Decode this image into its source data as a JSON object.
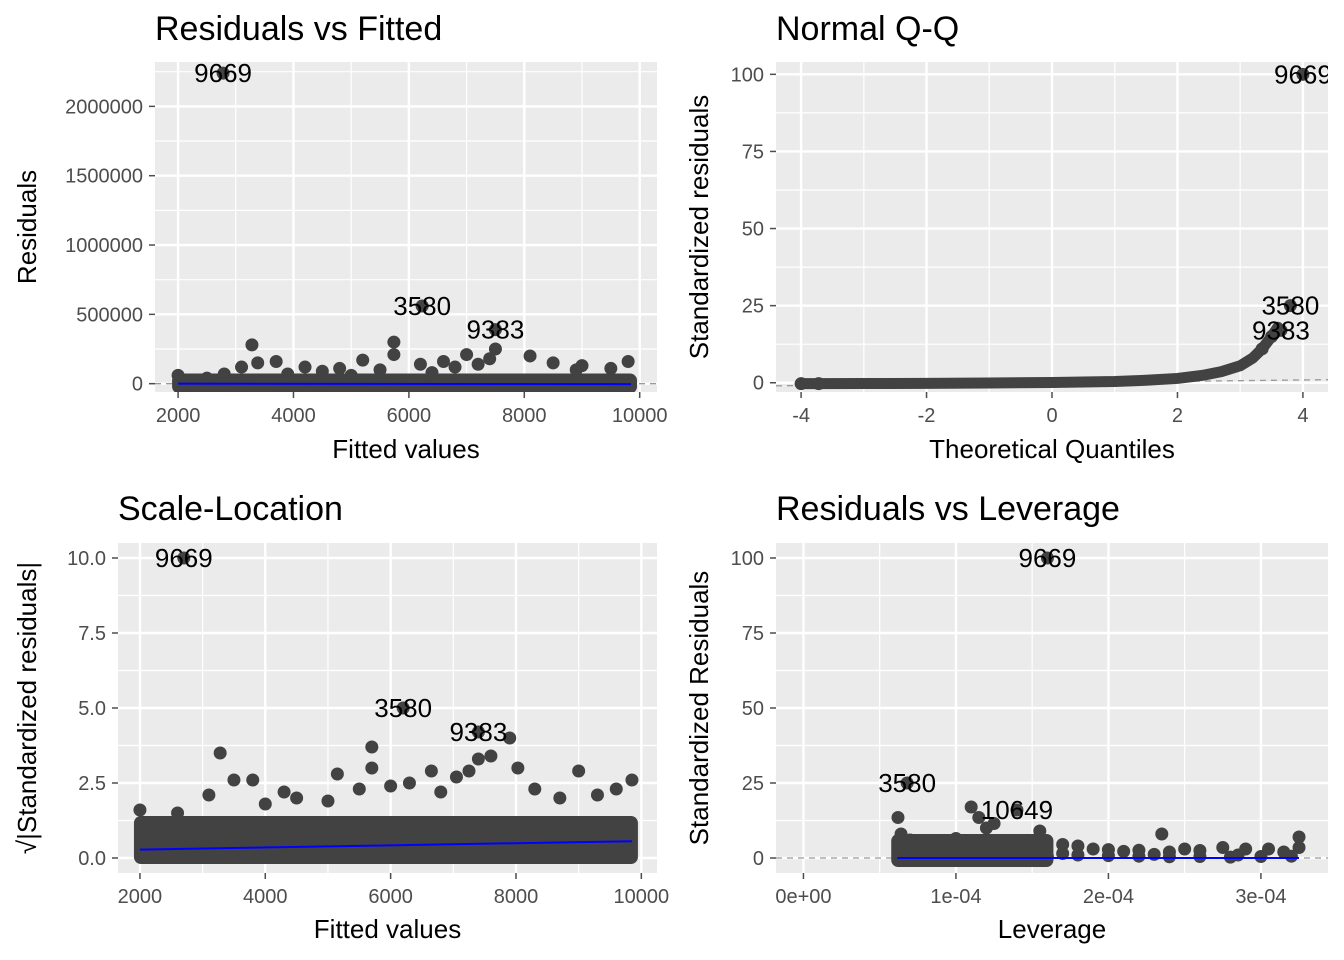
{
  "colors": {
    "panel_bg": "#EBEBEB",
    "grid": "#FFFFFF",
    "point": "#424242",
    "smooth": "#0000FF",
    "refline": "#999999",
    "tick": "#4D4D4D",
    "text": "#000000"
  },
  "chart_data": [
    {
      "id": "residuals-vs-fitted",
      "type": "scatter",
      "title": "Residuals vs Fitted",
      "xlabel": "Fitted values",
      "ylabel": "Residuals",
      "xlim": [
        1600,
        10300
      ],
      "ylim": [
        -60000,
        2320000
      ],
      "x_ticks": [
        2000,
        4000,
        6000,
        8000,
        10000
      ],
      "x_tick_labels": [
        "2000",
        "4000",
        "6000",
        "8000",
        "10000"
      ],
      "y_ticks": [
        0,
        500000,
        1000000,
        1500000,
        2000000
      ],
      "y_tick_labels": [
        "0",
        "500000",
        "1000000",
        "1500000",
        "2000000"
      ],
      "grid": true,
      "reference_line": {
        "y": 0,
        "style": "dashed"
      },
      "smooth": [
        [
          2000,
          0
        ],
        [
          9850,
          -3000
        ]
      ],
      "band": {
        "x_range": [
          2000,
          9850
        ],
        "y_low": -15000,
        "y_high": 30000
      },
      "points": [
        [
          3280,
          280000
        ],
        [
          5740,
          300000
        ],
        [
          5740,
          210000
        ],
        [
          3380,
          150000
        ],
        [
          3700,
          160000
        ],
        [
          4200,
          120000
        ],
        [
          4800,
          110000
        ],
        [
          5200,
          170000
        ],
        [
          6200,
          140000
        ],
        [
          6600,
          160000
        ],
        [
          7000,
          210000
        ],
        [
          7500,
          250000
        ],
        [
          7400,
          180000
        ],
        [
          8100,
          200000
        ],
        [
          8500,
          150000
        ],
        [
          9000,
          130000
        ],
        [
          9800,
          160000
        ],
        [
          2000,
          60000
        ],
        [
          2800,
          70000
        ],
        [
          3100,
          120000
        ],
        [
          4500,
          90000
        ],
        [
          5500,
          100000
        ],
        [
          6800,
          120000
        ],
        [
          7200,
          140000
        ],
        [
          8900,
          100000
        ],
        [
          9500,
          110000
        ],
        [
          2500,
          40000
        ],
        [
          3900,
          70000
        ],
        [
          5000,
          60000
        ],
        [
          6400,
          80000
        ]
      ],
      "labeled_points": [
        {
          "label": "9669",
          "x": 2780,
          "y": 2240000
        },
        {
          "label": "3580",
          "x": 6230,
          "y": 560000
        },
        {
          "label": "9383",
          "x": 7500,
          "y": 390000
        }
      ]
    },
    {
      "id": "normal-qq",
      "type": "scatter",
      "title": "Normal Q-Q",
      "xlabel": "Theoretical Quantiles",
      "ylabel": "Standardized residuals",
      "xlim": [
        -4.4,
        4.4
      ],
      "ylim": [
        -3,
        104
      ],
      "x_ticks": [
        -4,
        -2,
        0,
        2,
        4
      ],
      "x_tick_labels": [
        "-4",
        "-2",
        "0",
        "2",
        "4"
      ],
      "y_ticks": [
        0,
        25,
        50,
        75,
        100
      ],
      "y_tick_labels": [
        "0",
        "25",
        "50",
        "75",
        "100"
      ],
      "grid": true,
      "reference_line": {
        "from": [
          -4.4,
          -1.0
        ],
        "to": [
          4.4,
          1.0
        ],
        "style": "dashed"
      },
      "curve": [
        [
          -4.0,
          -0.3
        ],
        [
          -3.7,
          -0.3
        ],
        [
          -3.0,
          -0.25
        ],
        [
          -2.0,
          -0.2
        ],
        [
          -1.0,
          -0.1
        ],
        [
          0,
          0.1
        ],
        [
          1.0,
          0.4
        ],
        [
          1.5,
          0.8
        ],
        [
          2.0,
          1.4
        ],
        [
          2.4,
          2.4
        ],
        [
          2.7,
          3.6
        ],
        [
          3.0,
          5.5
        ],
        [
          3.2,
          8.0
        ],
        [
          3.35,
          11.0
        ],
        [
          3.5,
          15.0
        ],
        [
          3.6,
          18.0
        ]
      ],
      "points": [
        [
          -4.0,
          -0.3
        ],
        [
          -3.72,
          -0.3
        ],
        [
          3.35,
          11.0
        ],
        [
          3.5,
          15.0
        ]
      ],
      "labeled_points": [
        {
          "label": "9669",
          "x": 4.0,
          "y": 100
        },
        {
          "label": "3580",
          "x": 3.8,
          "y": 25
        },
        {
          "label": "9383",
          "x": 3.65,
          "y": 17
        }
      ]
    },
    {
      "id": "scale-location",
      "type": "scatter",
      "title": "Scale-Location",
      "xlabel": "Fitted values",
      "ylabel": "√|Standardized residuals|",
      "xlim": [
        1650,
        10250
      ],
      "ylim": [
        -0.5,
        10.5
      ],
      "x_ticks": [
        2000,
        4000,
        6000,
        8000,
        10000
      ],
      "x_tick_labels": [
        "2000",
        "4000",
        "6000",
        "8000",
        "10000"
      ],
      "y_ticks": [
        0.0,
        2.5,
        5.0,
        7.5,
        10.0
      ],
      "y_tick_labels": [
        "0.0",
        "2.5",
        "5.0",
        "7.5",
        "10.0"
      ],
      "grid": true,
      "smooth": [
        [
          2000,
          0.28
        ],
        [
          9850,
          0.56
        ]
      ],
      "band": {
        "x_range": [
          2000,
          9850
        ],
        "y_low": 0.0,
        "y_high": 1.2
      },
      "points": [
        [
          3280,
          3.5
        ],
        [
          5700,
          3.7
        ],
        [
          5700,
          3.0
        ],
        [
          7400,
          3.3
        ],
        [
          7600,
          3.4
        ],
        [
          7900,
          4.0
        ],
        [
          5150,
          2.8
        ],
        [
          6650,
          2.9
        ],
        [
          7050,
          2.7
        ],
        [
          7250,
          2.9
        ],
        [
          8030,
          3.0
        ],
        [
          9000,
          2.9
        ],
        [
          9850,
          2.6
        ],
        [
          2000,
          1.6
        ],
        [
          3500,
          2.6
        ],
        [
          3800,
          2.6
        ],
        [
          3100,
          2.1
        ],
        [
          4000,
          1.8
        ],
        [
          4500,
          2.0
        ],
        [
          5000,
          1.9
        ],
        [
          5500,
          2.3
        ],
        [
          6000,
          2.4
        ],
        [
          6300,
          2.5
        ],
        [
          6800,
          2.2
        ],
        [
          8300,
          2.3
        ],
        [
          8700,
          2.0
        ],
        [
          9300,
          2.1
        ],
        [
          9600,
          2.3
        ],
        [
          4300,
          2.2
        ],
        [
          2600,
          1.5
        ]
      ],
      "labeled_points": [
        {
          "label": "9669",
          "x": 2700,
          "y": 10.0
        },
        {
          "label": "3580",
          "x": 6200,
          "y": 5.0
        },
        {
          "label": "9383",
          "x": 7400,
          "y": 4.2
        }
      ]
    },
    {
      "id": "residuals-vs-leverage",
      "type": "scatter",
      "title": "Residuals vs Leverage",
      "xlabel": "Leverage",
      "ylabel": "Standardized Residuals",
      "xlim": [
        -1.8e-05,
        0.000344
      ],
      "ylim": [
        -5,
        105
      ],
      "x_ticks": [
        0,
        0.0001,
        0.0002,
        0.0003
      ],
      "x_tick_labels": [
        "0e+00",
        "1e-04",
        "2e-04",
        "3e-04"
      ],
      "y_ticks": [
        0,
        25,
        50,
        75,
        100
      ],
      "y_tick_labels": [
        "0",
        "25",
        "50",
        "75",
        "100"
      ],
      "grid": true,
      "reference_line": {
        "y": 0,
        "style": "dashed"
      },
      "smooth": [
        [
          6.15e-05,
          0
        ],
        [
          0.000325,
          0
        ]
      ],
      "band": {
        "x_range": [
          6.15e-05,
          0.00016
        ],
        "y_low": -1,
        "y_high": 6
      },
      "points": [
        [
          6.2e-05,
          13.5
        ],
        [
          6.4e-05,
          8.0
        ],
        [
          0.00011,
          17.0
        ],
        [
          0.000115,
          13.5
        ],
        [
          0.00012,
          10.0
        ],
        [
          0.000125,
          11.5
        ],
        [
          0.000155,
          9.0
        ],
        [
          0.000235,
          8.0
        ],
        [
          0.000325,
          7.0
        ],
        [
          7e-05,
          6.0
        ],
        [
          8e-05,
          5.0
        ],
        [
          9e-05,
          5.5
        ],
        [
          0.0001,
          6.5
        ],
        [
          0.00014,
          5.0
        ],
        [
          0.00017,
          4.5
        ],
        [
          0.00018,
          4.0
        ],
        [
          0.00019,
          3.0
        ],
        [
          0.0002,
          2.8
        ],
        [
          0.00021,
          2.2
        ],
        [
          0.00022,
          2.6
        ],
        [
          0.00024,
          2.0
        ],
        [
          0.00025,
          3.0
        ],
        [
          0.00026,
          2.5
        ],
        [
          0.000275,
          3.5
        ],
        [
          0.00029,
          3.0
        ],
        [
          0.000305,
          3.0
        ],
        [
          0.000315,
          2.0
        ],
        [
          0.000325,
          3.5
        ],
        [
          0.00016,
          0.5
        ],
        [
          0.00018,
          1.0
        ],
        [
          0.0002,
          0.8
        ],
        [
          0.00022,
          0.6
        ],
        [
          0.00024,
          0.4
        ],
        [
          0.00026,
          0.5
        ],
        [
          0.00028,
          0.3
        ],
        [
          0.0003,
          0.5
        ],
        [
          0.00032,
          0.6
        ],
        [
          0.00017,
          1.5
        ],
        [
          0.00023,
          1.2
        ],
        [
          0.000285,
          1.0
        ]
      ],
      "labeled_points": [
        {
          "label": "9669",
          "x": 0.00016,
          "y": 100
        },
        {
          "label": "3580",
          "x": 6.8e-05,
          "y": 25
        },
        {
          "label": "10649",
          "x": 0.00014,
          "y": 16
        }
      ]
    }
  ]
}
